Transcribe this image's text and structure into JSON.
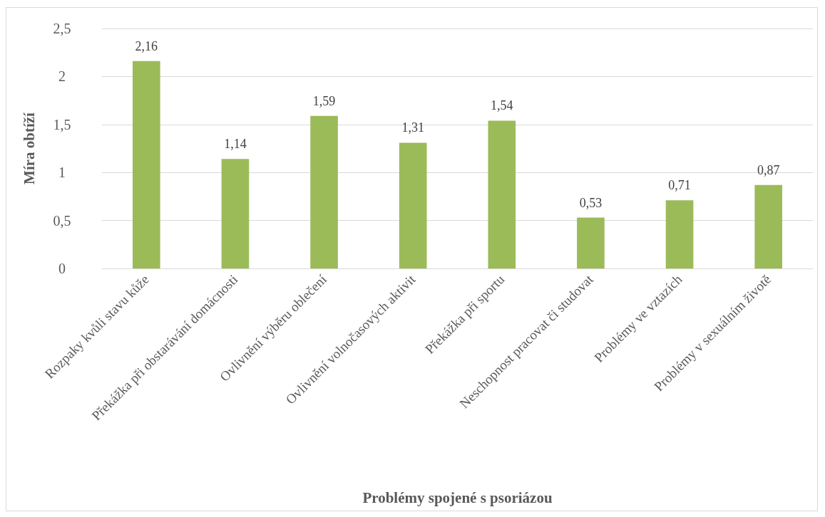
{
  "chart_data": {
    "type": "bar",
    "xlabel": "Problémy spojené s psoriázou",
    "ylabel": "Míra obtíží",
    "categories": [
      "Rozpaky kvůli stavu kůže",
      "Překážka při obstarávání domácnosti",
      "Ovlivnění výběru oblečení",
      "Ovlivnění volnočasových aktivit",
      "Překážka při sportu",
      "Neschopnost pracovat či studovat",
      "Problémy ve vztazích",
      "Problémy v sexuálním životě"
    ],
    "values": [
      2.16,
      1.14,
      1.59,
      1.31,
      1.54,
      0.53,
      0.71,
      0.87
    ],
    "value_labels": [
      "2,16",
      "1,14",
      "1,59",
      "1,31",
      "1,54",
      "0,53",
      "0,71",
      "0,87"
    ],
    "color": "#9bbb59",
    "ylim": [
      0,
      2.5
    ],
    "yticks": [
      0,
      {
        "value": 0.5,
        "label": "0,5"
      },
      1,
      {
        "value": 1.5,
        "label": "1,5"
      },
      2,
      {
        "value": 2.5,
        "label": "2,5"
      }
    ],
    "grid": "y"
  }
}
